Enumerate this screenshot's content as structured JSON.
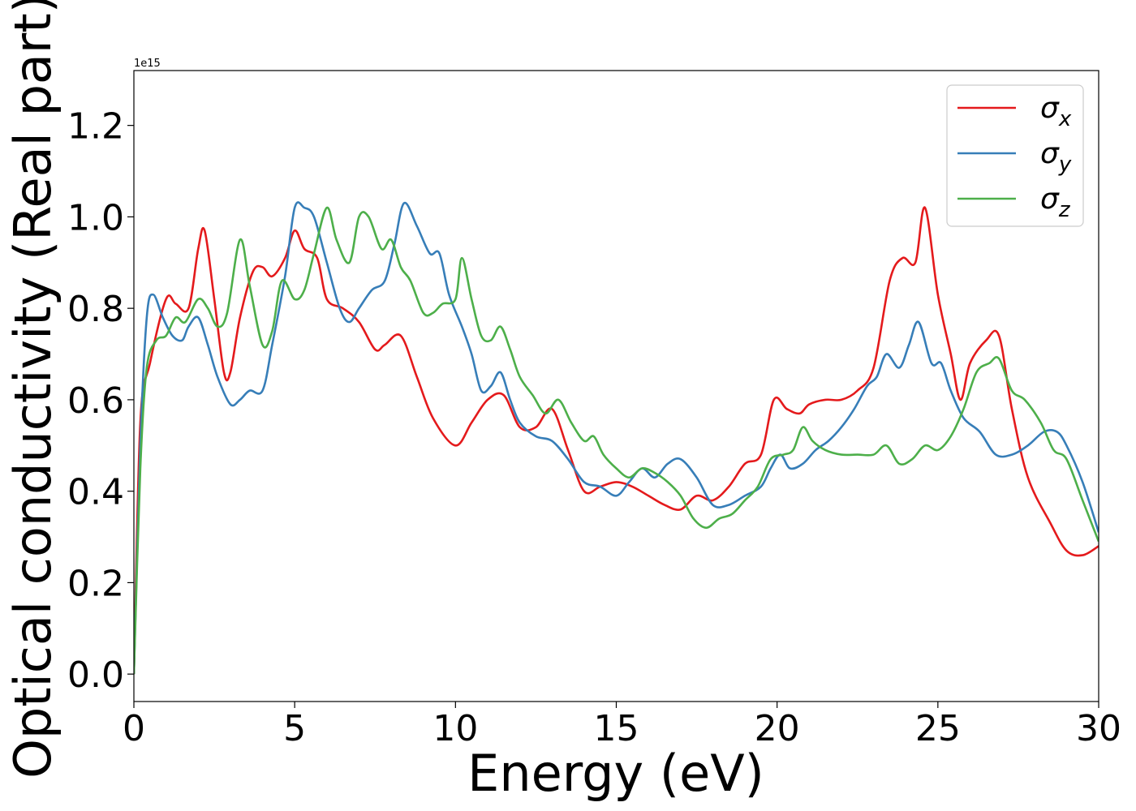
{
  "chart_data": {
    "type": "line",
    "title": "",
    "xlabel": "Energy (eV)",
    "ylabel": "Optical conductivity (Real part)",
    "y_scale_offset": "1e15",
    "xlim": [
      0,
      30
    ],
    "ylim": [
      -0.06,
      1.32
    ],
    "x_ticks": [
      0,
      5,
      10,
      15,
      20,
      25,
      30
    ],
    "y_ticks": [
      0.0,
      0.2,
      0.4,
      0.6,
      0.8,
      1.0,
      1.2
    ],
    "x_tick_labels": [
      "0",
      "5",
      "10",
      "15",
      "20",
      "25",
      "30"
    ],
    "y_tick_labels": [
      "0.0",
      "0.2",
      "0.4",
      "0.6",
      "0.8",
      "1.0",
      "1.2"
    ],
    "grid": false,
    "legend_position": "top-right",
    "series": [
      {
        "name": "σx",
        "color": "#e41a1c",
        "x": [
          0,
          0.2,
          0.5,
          1.0,
          1.3,
          1.7,
          2.0,
          2.2,
          2.5,
          2.8,
          3.0,
          3.3,
          3.7,
          4.0,
          4.3,
          4.7,
          5.0,
          5.3,
          5.7,
          6.0,
          6.5,
          7.0,
          7.5,
          7.8,
          8.3,
          8.8,
          9.3,
          10.0,
          10.5,
          11.0,
          11.5,
          12.0,
          12.5,
          13.0,
          13.5,
          14.0,
          14.5,
          15.0,
          15.5,
          16.0,
          16.5,
          17.0,
          17.5,
          18.0,
          18.5,
          19.0,
          19.5,
          19.9,
          20.3,
          20.7,
          21.0,
          21.5,
          22.0,
          22.5,
          23.0,
          23.5,
          23.9,
          24.3,
          24.6,
          25.0,
          25.4,
          25.7,
          26.0,
          26.5,
          26.9,
          27.3,
          27.8,
          28.5,
          29.0,
          29.5,
          30.0
        ],
        "y": [
          0.0,
          0.55,
          0.68,
          0.82,
          0.81,
          0.8,
          0.93,
          0.97,
          0.82,
          0.66,
          0.66,
          0.78,
          0.88,
          0.89,
          0.87,
          0.91,
          0.97,
          0.93,
          0.91,
          0.82,
          0.8,
          0.77,
          0.71,
          0.72,
          0.74,
          0.65,
          0.56,
          0.5,
          0.55,
          0.6,
          0.61,
          0.54,
          0.54,
          0.58,
          0.49,
          0.4,
          0.41,
          0.42,
          0.41,
          0.39,
          0.37,
          0.36,
          0.39,
          0.38,
          0.41,
          0.46,
          0.48,
          0.6,
          0.58,
          0.57,
          0.59,
          0.6,
          0.6,
          0.62,
          0.67,
          0.86,
          0.91,
          0.9,
          1.02,
          0.83,
          0.7,
          0.6,
          0.68,
          0.73,
          0.74,
          0.58,
          0.43,
          0.33,
          0.27,
          0.26,
          0.28
        ]
      },
      {
        "name": "σy",
        "color": "#377eb8",
        "x": [
          0,
          0.2,
          0.4,
          0.6,
          0.9,
          1.2,
          1.5,
          1.7,
          2.0,
          2.3,
          2.6,
          3.0,
          3.3,
          3.6,
          4.0,
          4.3,
          4.7,
          5.0,
          5.3,
          5.6,
          6.0,
          6.4,
          6.7,
          7.0,
          7.4,
          7.8,
          8.1,
          8.4,
          8.8,
          9.2,
          9.5,
          9.8,
          10.2,
          10.5,
          10.8,
          11.1,
          11.4,
          11.7,
          12.0,
          12.5,
          13.0,
          13.5,
          14.0,
          14.5,
          15.0,
          15.4,
          15.8,
          16.2,
          16.6,
          17.0,
          17.5,
          18.0,
          18.5,
          19.0,
          19.5,
          19.8,
          20.1,
          20.4,
          20.8,
          21.2,
          21.6,
          22.0,
          22.4,
          22.8,
          23.1,
          23.4,
          23.8,
          24.1,
          24.4,
          24.8,
          25.1,
          25.4,
          25.8,
          26.3,
          26.8,
          27.3,
          27.8,
          28.3,
          28.7,
          29.0,
          29.5,
          30.0
        ],
        "y": [
          0.0,
          0.5,
          0.78,
          0.83,
          0.78,
          0.74,
          0.73,
          0.76,
          0.78,
          0.72,
          0.65,
          0.59,
          0.6,
          0.62,
          0.62,
          0.72,
          0.87,
          1.02,
          1.02,
          1.0,
          0.9,
          0.8,
          0.77,
          0.8,
          0.84,
          0.86,
          0.94,
          1.03,
          0.98,
          0.92,
          0.92,
          0.83,
          0.76,
          0.7,
          0.62,
          0.63,
          0.66,
          0.6,
          0.55,
          0.52,
          0.51,
          0.47,
          0.42,
          0.41,
          0.39,
          0.42,
          0.45,
          0.43,
          0.46,
          0.47,
          0.43,
          0.37,
          0.37,
          0.39,
          0.41,
          0.45,
          0.48,
          0.45,
          0.46,
          0.49,
          0.51,
          0.54,
          0.58,
          0.63,
          0.65,
          0.7,
          0.67,
          0.72,
          0.77,
          0.68,
          0.68,
          0.62,
          0.56,
          0.53,
          0.48,
          0.48,
          0.5,
          0.53,
          0.53,
          0.5,
          0.42,
          0.31
        ]
      },
      {
        "name": "σz",
        "color": "#4daf4a",
        "x": [
          0,
          0.2,
          0.4,
          0.7,
          1.0,
          1.3,
          1.6,
          2.0,
          2.3,
          2.6,
          2.9,
          3.3,
          3.6,
          4.0,
          4.3,
          4.6,
          5.0,
          5.3,
          5.6,
          6.0,
          6.3,
          6.7,
          7.0,
          7.3,
          7.7,
          8.0,
          8.3,
          8.6,
          9.0,
          9.3,
          9.6,
          10.0,
          10.2,
          10.5,
          10.8,
          11.1,
          11.4,
          11.7,
          12.0,
          12.4,
          12.8,
          13.2,
          13.6,
          14.0,
          14.3,
          14.6,
          15.0,
          15.4,
          15.8,
          16.2,
          16.6,
          17.0,
          17.4,
          17.8,
          18.2,
          18.6,
          19.0,
          19.4,
          19.8,
          20.2,
          20.5,
          20.8,
          21.1,
          21.5,
          22.0,
          22.5,
          23.0,
          23.4,
          23.8,
          24.2,
          24.6,
          25.0,
          25.4,
          25.8,
          26.2,
          26.6,
          26.9,
          27.3,
          27.7,
          28.2,
          28.6,
          29.0,
          29.5,
          30.0
        ],
        "y": [
          0.0,
          0.45,
          0.67,
          0.73,
          0.74,
          0.78,
          0.77,
          0.82,
          0.8,
          0.76,
          0.79,
          0.95,
          0.85,
          0.72,
          0.75,
          0.86,
          0.82,
          0.84,
          0.92,
          1.02,
          0.95,
          0.9,
          1.0,
          1.0,
          0.93,
          0.95,
          0.89,
          0.86,
          0.79,
          0.79,
          0.81,
          0.82,
          0.91,
          0.82,
          0.74,
          0.73,
          0.76,
          0.71,
          0.65,
          0.61,
          0.57,
          0.6,
          0.55,
          0.51,
          0.52,
          0.48,
          0.45,
          0.43,
          0.45,
          0.44,
          0.42,
          0.39,
          0.34,
          0.32,
          0.34,
          0.35,
          0.38,
          0.41,
          0.47,
          0.48,
          0.49,
          0.54,
          0.51,
          0.49,
          0.48,
          0.48,
          0.48,
          0.5,
          0.46,
          0.47,
          0.5,
          0.49,
          0.52,
          0.58,
          0.66,
          0.68,
          0.69,
          0.62,
          0.6,
          0.55,
          0.49,
          0.47,
          0.38,
          0.29
        ]
      }
    ]
  }
}
